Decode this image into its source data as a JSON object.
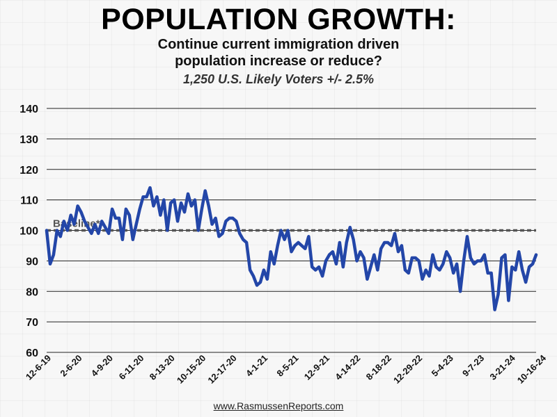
{
  "header": {
    "title": "POPULATION GROWTH:",
    "subtitle_line1": "Continue current immigration driven",
    "subtitle_line2": "population increase or reduce?",
    "sample": "1,250 U.S. Likely Voters +/- 2.5%"
  },
  "footer": {
    "source": "www.RasmussenReports.com"
  },
  "chart_data": {
    "type": "line",
    "title": "POPULATION GROWTH:",
    "xlabel": "",
    "ylabel": "",
    "ylim": [
      60,
      140
    ],
    "yticks": [
      60,
      70,
      80,
      90,
      100,
      110,
      120,
      130,
      140
    ],
    "grid": true,
    "x_tick_labels": [
      "12-6-19",
      "2-6-20",
      "4-9-20",
      "6-11-20",
      "8-13-20",
      "10-15-20",
      "12-17-20",
      "4-1-21",
      "8-5-21",
      "12-9-21",
      "4-14-22",
      "8-18-22",
      "12-29-22",
      "5-4-23",
      "9-7-23",
      "3-21-24",
      "10-16-24"
    ],
    "baseline": {
      "label": "Baseline*",
      "value": 100
    },
    "colors": {
      "series": "#2346a8",
      "baseline": "#555555"
    },
    "series": [
      {
        "values": [
          100,
          89,
          92,
          100,
          98,
          103,
          100,
          105,
          102,
          108,
          106,
          103,
          101,
          99,
          102,
          99,
          103,
          101,
          99,
          107,
          104,
          104,
          97,
          107,
          105,
          97,
          102,
          107,
          111,
          111,
          114,
          108,
          111,
          105,
          110,
          100,
          109,
          110,
          103,
          109,
          106,
          112,
          108,
          110,
          100,
          107,
          113,
          108,
          102,
          104,
          98,
          99,
          103,
          104,
          104,
          103,
          99,
          97,
          96,
          87,
          85,
          82,
          83,
          87,
          84,
          93,
          89,
          95,
          100,
          97,
          100,
          93,
          95,
          96,
          95,
          94,
          98,
          88,
          87,
          88,
          85,
          90,
          92,
          93,
          89,
          96,
          88,
          96,
          101,
          97,
          90,
          93,
          91,
          84,
          88,
          92,
          87,
          94,
          96,
          96,
          95,
          99,
          93,
          95,
          87,
          86,
          91,
          91,
          90,
          84,
          87,
          85,
          92,
          88,
          87,
          89,
          93,
          91,
          86,
          89,
          80,
          90,
          98,
          91,
          89,
          90,
          90,
          92,
          86,
          86,
          74,
          79,
          91,
          92,
          77,
          88,
          87,
          93,
          87,
          83,
          88,
          89,
          92
        ]
      }
    ]
  }
}
